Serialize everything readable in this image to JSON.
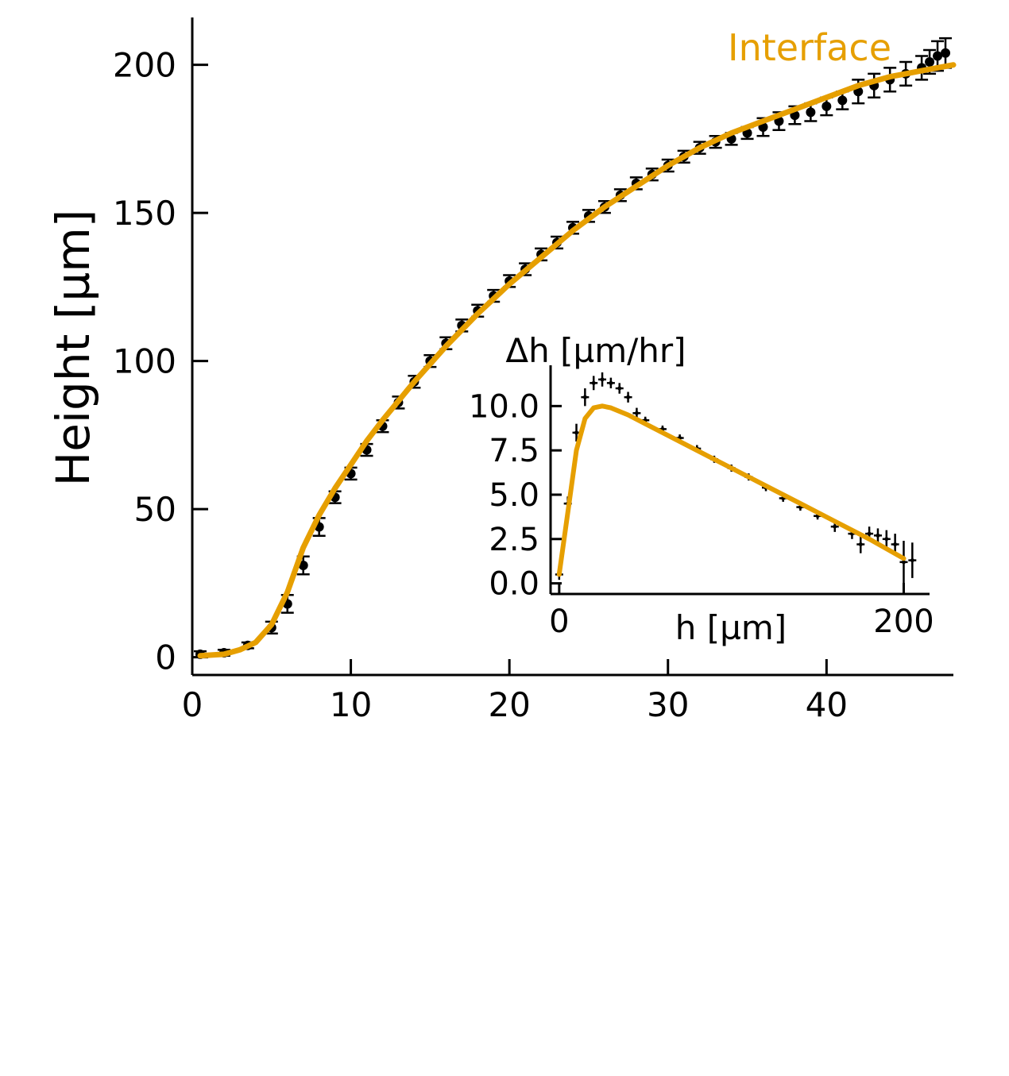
{
  "colors": {
    "fit": "#E69F00",
    "data": "#000000",
    "axis": "#000000"
  },
  "chart_data": [
    {
      "type": "scatter",
      "ylabel": "Height [µm]",
      "xlabel": "",
      "xlim": [
        0,
        48
      ],
      "ylim": [
        -6,
        216
      ],
      "x_ticks": [
        0,
        10,
        20,
        30,
        40
      ],
      "y_ticks": [
        0,
        50,
        100,
        150,
        200
      ],
      "grid": false,
      "legend_position": "top-right",
      "series": [
        {
          "name": "",
          "kind": "points-with-errorbars",
          "color": "#000000",
          "x": [
            0.5,
            2,
            3.5,
            5,
            6,
            7,
            8,
            9,
            10,
            11,
            12,
            13,
            14,
            15,
            16,
            17,
            18,
            19,
            20,
            21,
            22,
            23,
            24,
            25,
            26,
            27,
            28,
            29,
            30,
            31,
            32,
            33,
            34,
            35,
            36,
            37,
            38,
            39,
            40,
            41,
            42,
            43,
            44,
            45,
            46,
            46.5,
            47,
            47.5
          ],
          "y": [
            1,
            1.5,
            4,
            10,
            18,
            31,
            44,
            54,
            62,
            70,
            78,
            86,
            93,
            100,
            106,
            112,
            117,
            122,
            127,
            131,
            136,
            140,
            145,
            149,
            152,
            156,
            160,
            163,
            166,
            169,
            172,
            174,
            175,
            177,
            179,
            181,
            183,
            184,
            186,
            188,
            191,
            193,
            195,
            197,
            199,
            201,
            203,
            204
          ],
          "err": [
            1,
            1,
            1,
            2,
            3,
            3,
            3,
            2,
            2,
            2,
            2,
            2,
            2,
            2,
            2,
            2,
            2,
            2,
            2,
            2,
            2,
            2,
            2,
            2,
            2,
            2,
            2,
            2,
            2,
            2,
            2,
            2,
            2,
            2,
            3,
            3,
            3,
            3,
            3,
            3,
            4,
            4,
            4,
            4,
            4,
            4,
            5,
            5
          ]
        },
        {
          "name": "Interface",
          "kind": "line",
          "color": "#E69F00",
          "x": [
            0.5,
            2,
            3,
            4,
            5,
            6,
            7,
            8,
            9,
            10,
            11,
            12,
            14,
            16,
            18,
            20,
            22,
            24,
            26,
            28,
            30,
            32,
            34,
            36,
            38,
            40,
            42,
            44,
            46,
            48
          ],
          "y": [
            0.5,
            1,
            2.5,
            5,
            11,
            22,
            37,
            48,
            57,
            65,
            73,
            80,
            93,
            105,
            116,
            126,
            135,
            144,
            152,
            159,
            166,
            172,
            177,
            181,
            185,
            189,
            193,
            196,
            198,
            200
          ]
        }
      ]
    },
    {
      "type": "scatter",
      "inset": true,
      "ylabel": "Δh [µm/hr]",
      "xlabel": "h [µm]",
      "xlim": [
        -5,
        215
      ],
      "ylim": [
        -0.6,
        12.3
      ],
      "x_ticks": [
        0,
        200
      ],
      "y_ticks": [
        0.0,
        2.5,
        5.0,
        7.5,
        10.0
      ],
      "y_tick_labels": [
        "0.0",
        "2.5",
        "5.0",
        "7.5",
        "10.0"
      ],
      "grid": false,
      "series": [
        {
          "name": "",
          "kind": "points-with-errorbars",
          "color": "#000000",
          "x": [
            0,
            5,
            10,
            15,
            20,
            25,
            30,
            35,
            40,
            45,
            50,
            60,
            70,
            80,
            90,
            100,
            110,
            120,
            130,
            140,
            150,
            160,
            170,
            175,
            180,
            185,
            190,
            195,
            200,
            205
          ],
          "y": [
            0.5,
            4.5,
            8.5,
            10.5,
            11.3,
            11.5,
            11.3,
            11,
            10.5,
            9.6,
            9.2,
            8.7,
            8.2,
            7.6,
            7,
            6.5,
            6,
            5.4,
            4.8,
            4.3,
            3.8,
            3.2,
            2.8,
            2.2,
            2.8,
            2.7,
            2.5,
            2.2,
            1.2,
            1.3
          ],
          "err": [
            0.3,
            0.4,
            0.5,
            0.5,
            0.4,
            0.4,
            0.3,
            0.3,
            0.3,
            0.3,
            0.2,
            0.2,
            0.2,
            0.2,
            0.2,
            0.2,
            0.2,
            0.2,
            0.2,
            0.2,
            0.2,
            0.3,
            0.3,
            0.5,
            0.4,
            0.4,
            0.5,
            0.6,
            1.2,
            1.0
          ]
        },
        {
          "name": "",
          "kind": "line",
          "color": "#E69F00",
          "x": [
            0,
            5,
            10,
            15,
            20,
            25,
            30,
            40,
            50,
            60,
            80,
            100,
            120,
            140,
            160,
            180,
            200
          ],
          "y": [
            0.5,
            4.0,
            7.5,
            9.3,
            9.9,
            10.0,
            9.9,
            9.5,
            9.0,
            8.5,
            7.5,
            6.5,
            5.5,
            4.5,
            3.5,
            2.5,
            1.4
          ]
        }
      ]
    }
  ]
}
